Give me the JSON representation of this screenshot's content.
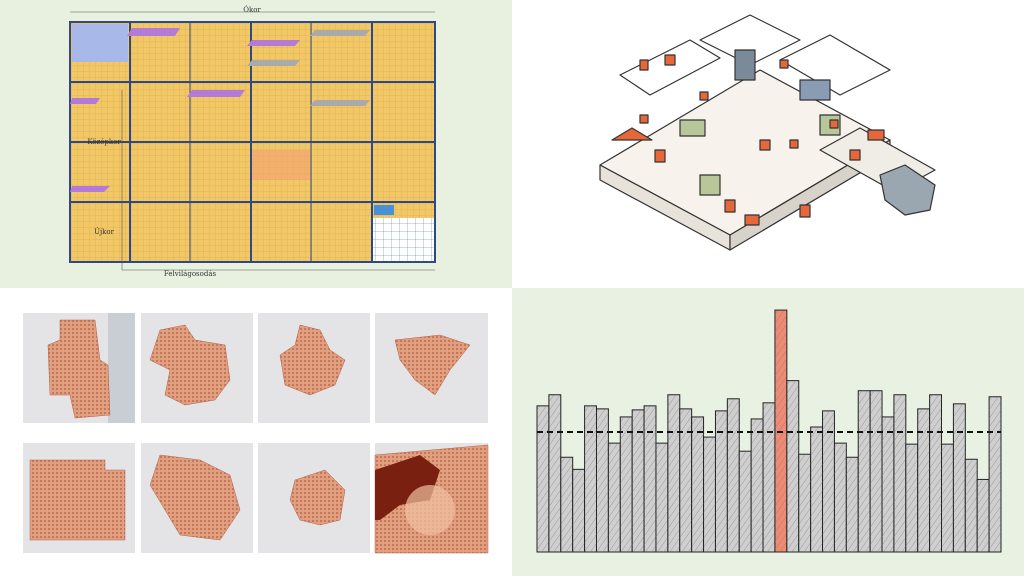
{
  "timeline": {
    "top_label": "Ókor",
    "left_labels": [
      "Középkor",
      "Újkor"
    ],
    "bottom_label": "Felvilágosodás"
  },
  "chart_data": {
    "type": "bar",
    "values": [
      145,
      156,
      94,
      82,
      145,
      142,
      108,
      134,
      141,
      145,
      108,
      156,
      142,
      134,
      114,
      140,
      152,
      100,
      132,
      148,
      240,
      170,
      97,
      124,
      140,
      108,
      94,
      160,
      160,
      134,
      156,
      107,
      142,
      156,
      107,
      147,
      92,
      72,
      154
    ],
    "colors": [
      "#cfcfcf",
      "#cfcfcf",
      "#cfcfcf",
      "#cfcfcf",
      "#cfcfcf",
      "#cfcfcf",
      "#cfcfcf",
      "#cfcfcf",
      "#cfcfcf",
      "#cfcfcf",
      "#cfcfcf",
      "#cfcfcf",
      "#cfcfcf",
      "#cfcfcf",
      "#cfcfcf",
      "#cfcfcf",
      "#cfcfcf",
      "#cfcfcf",
      "#cfcfcf",
      "#cfcfcf",
      "#ef8a74",
      "#cfcfcf",
      "#cfcfcf",
      "#cfcfcf",
      "#cfcfcf",
      "#cfcfcf",
      "#cfcfcf",
      "#cfcfcf",
      "#cfcfcf",
      "#cfcfcf",
      "#cfcfcf",
      "#cfcfcf",
      "#cfcfcf",
      "#cfcfcf",
      "#cfcfcf",
      "#cfcfcf",
      "#cfcfcf",
      "#cfcfcf",
      "#cfcfcf"
    ],
    "reference_line": 119,
    "ylim": [
      0,
      250
    ]
  }
}
